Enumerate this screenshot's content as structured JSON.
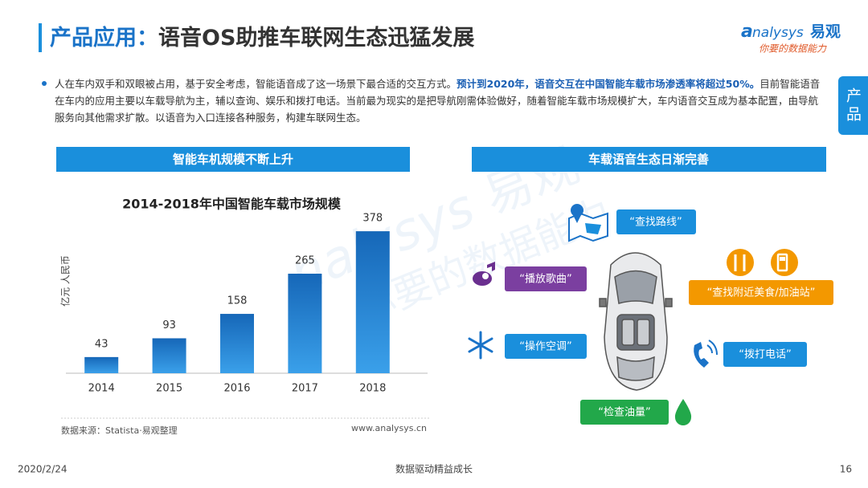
{
  "header": {
    "title_prefix": "产品应用：",
    "title_main": "语音OS助推车联网生态迅猛发展"
  },
  "logo": {
    "brand": "nalysys",
    "brand_cn": "易观",
    "tagline": "你要的数据能力"
  },
  "side_tab": "产品",
  "body": {
    "text_start": "人在车内双手和双眼被占用，基于安全考虑，智能语音成了这一场景下最合适的交互方式。",
    "text_highlight": "预计到2020年，语音交互在中国智能车载市场渗透率将超过50%。",
    "text_end": "目前智能语音在车内的应用主要以车载导航为主，辅以查询、娱乐和拨打电话。当前最为现实的是把导航刚需体验做好，随着智能车载市场规模扩大，车内语音交互成为基本配置，由导航服务向其他需求扩散。以语音为入口连接各种服务，构建车联网生态。"
  },
  "left_panel": {
    "heading": "智能车机规模不断上升",
    "source": "数据来源：Statista·易观整理",
    "website": "www.analysys.cn"
  },
  "chart_data": {
    "type": "bar",
    "title": "2014-2018年中国智能车载市场规模",
    "y_label": "亿元 人民币",
    "categories": [
      "2014",
      "2015",
      "2016",
      "2017",
      "2018"
    ],
    "values": [
      43,
      93,
      158,
      265,
      378
    ],
    "color": "#1f7fd0"
  },
  "right_panel": {
    "heading": "车载语音生态日渐完善"
  },
  "diagram": {
    "nodes": [
      {
        "label": "“查找路线”"
      },
      {
        "label": "“播放歌曲”"
      },
      {
        "label": "“查找附近美食/加油站”"
      },
      {
        "label": "“操作空调”"
      },
      {
        "label": "“拨打电话”"
      },
      {
        "label": "“检查油量”"
      }
    ]
  },
  "footer": {
    "date": "2020/2/24",
    "slogan": "数据驱动精益成长",
    "page": "16"
  }
}
